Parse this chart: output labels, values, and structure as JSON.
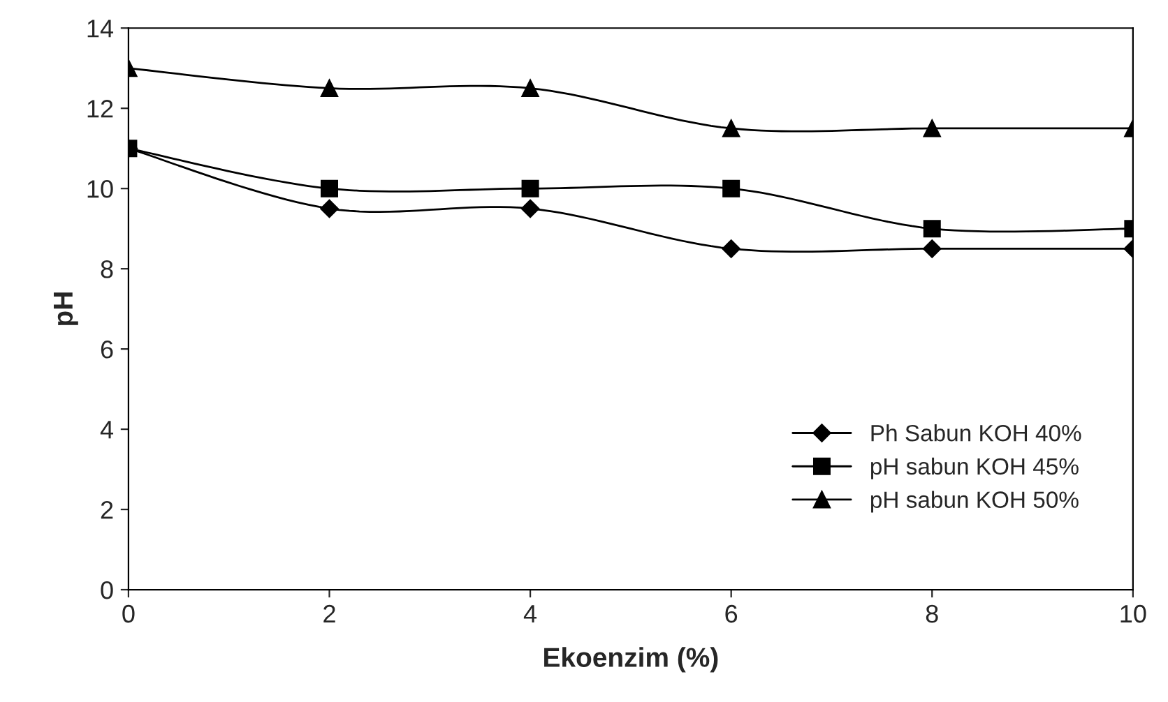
{
  "chart_data": {
    "type": "line",
    "xlabel": "Ekoenzim (%)",
    "ylabel": "pH",
    "x": [
      0,
      2,
      4,
      6,
      8,
      10
    ],
    "series": [
      {
        "name": "Ph Sabun KOH 40%",
        "color": "#000000",
        "marker": "diamond",
        "values": [
          11,
          9.5,
          9.5,
          8.5,
          8.5,
          8.5
        ]
      },
      {
        "name": "pH sabun KOH 45%",
        "color": "#000000",
        "marker": "square",
        "values": [
          11,
          10,
          10,
          10,
          9,
          9
        ]
      },
      {
        "name": "pH sabun KOH 50%",
        "color": "#000000",
        "marker": "triangle",
        "values": [
          13,
          12.5,
          12.5,
          11.5,
          11.5,
          11.5
        ]
      }
    ],
    "xlim": [
      0,
      10
    ],
    "xticks": [
      0,
      2,
      4,
      6,
      8,
      10
    ],
    "ylim": [
      0,
      14
    ],
    "yticks": [
      0,
      2,
      4,
      6,
      8,
      10,
      12,
      14
    ],
    "grid": false,
    "legend": "bottom right",
    "line_style": "solid"
  }
}
